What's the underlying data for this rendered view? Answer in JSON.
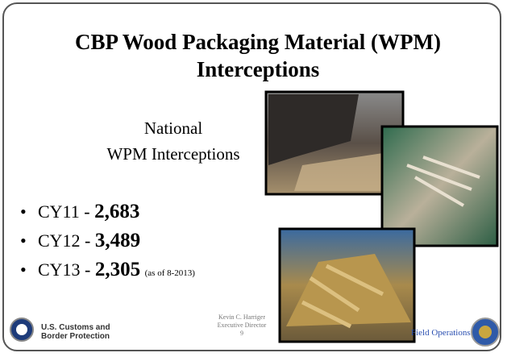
{
  "header": {
    "title": "CBP Wood Packaging Material (WPM) Interceptions"
  },
  "subheading": {
    "lines": [
      "National",
      "WPM Interceptions"
    ]
  },
  "bullets": [
    {
      "label": "CY11 -",
      "value": "2,683"
    },
    {
      "label": "CY12 -",
      "value": "3,489"
    },
    {
      "label": "CY13 -",
      "value": "2,305",
      "note": "(as of 8-2013)"
    }
  ],
  "footer": {
    "agency": [
      "U.S. Customs and",
      "Border Protection"
    ],
    "presenter": [
      "Kevin C. Harriger",
      "Executive Director"
    ],
    "page": "9",
    "office": "Field Operations"
  }
}
